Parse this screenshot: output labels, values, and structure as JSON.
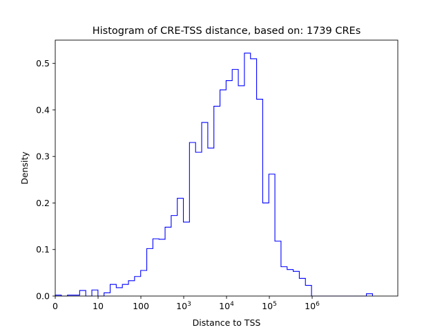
{
  "chart_data": {
    "type": "histogram",
    "title": "Histogram of CRE-TSS distance, based on: 1739 CREs",
    "xlabel": "Distance to TSS",
    "ylabel": "Density",
    "x_scale": "log1p",
    "xlim": [
      0.0,
      8.0
    ],
    "ylim": [
      0.0,
      0.55
    ],
    "y_ticks": [
      {
        "value": 0.0,
        "label": "0.0"
      },
      {
        "value": 0.1,
        "label": "0.1"
      },
      {
        "value": 0.2,
        "label": "0.2"
      },
      {
        "value": 0.3,
        "label": "0.3"
      },
      {
        "value": 0.4,
        "label": "0.4"
      },
      {
        "value": 0.5,
        "label": "0.5"
      }
    ],
    "x_ticks": [
      {
        "position": 0,
        "label": "0",
        "base": "",
        "exp": ""
      },
      {
        "position": 1,
        "label": "10",
        "base": "",
        "exp": ""
      },
      {
        "position": 2,
        "label": "100",
        "base": "",
        "exp": ""
      },
      {
        "position": 3,
        "label": "",
        "base": "10",
        "exp": "3"
      },
      {
        "position": 4,
        "label": "",
        "base": "10",
        "exp": "4"
      },
      {
        "position": 5,
        "label": "",
        "base": "10",
        "exp": "5"
      },
      {
        "position": 6,
        "label": "",
        "base": "10",
        "exp": "6"
      }
    ],
    "bin_width": 0.1425,
    "bin_start": 0.0,
    "densities": [
      0.002,
      0.0,
      0.002,
      0.002,
      0.012,
      0.0,
      0.013,
      0.0,
      0.007,
      0.025,
      0.018,
      0.025,
      0.033,
      0.042,
      0.055,
      0.102,
      0.123,
      0.122,
      0.148,
      0.173,
      0.21,
      0.159,
      0.33,
      0.309,
      0.373,
      0.318,
      0.408,
      0.443,
      0.463,
      0.487,
      0.452,
      0.522,
      0.51,
      0.423,
      0.2,
      0.262,
      0.118,
      0.063,
      0.057,
      0.053,
      0.038,
      0.023,
      0.0,
      0.0,
      0.0,
      0.0,
      0.0,
      0.0,
      0.0,
      0.0,
      0.0,
      0.005
    ],
    "line_color": "#0000ff",
    "grid": false,
    "legend": "none"
  }
}
